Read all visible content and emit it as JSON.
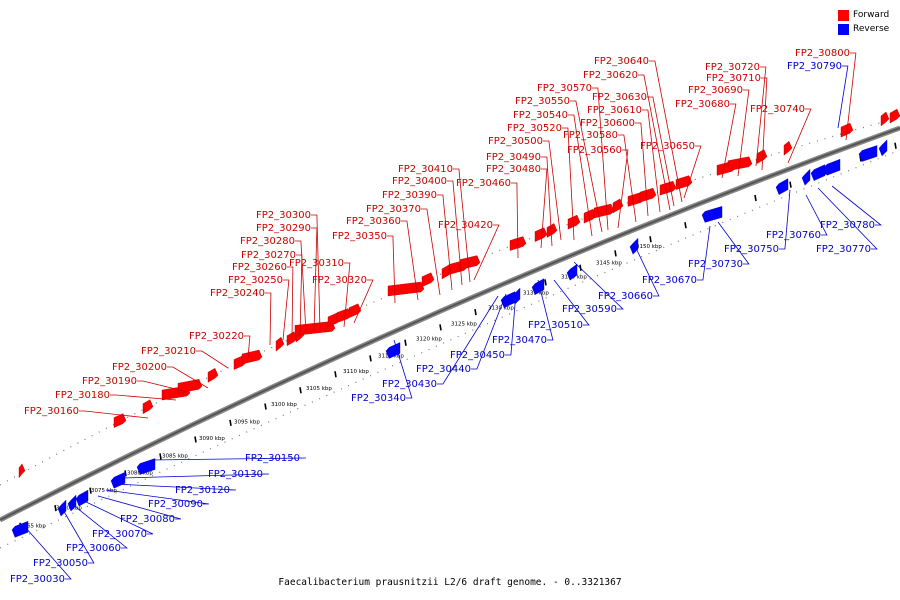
{
  "legend": {
    "forward_label": "Forward",
    "reverse_label": "Reverse",
    "forward_color": "#ff0000",
    "reverse_color": "#0000ff"
  },
  "caption": "Faecalibacterium prausnitzii L2/6 draft genome. - 0..3321367",
  "kbp_ticks": [
    "3065 kbp",
    "3070 kbp",
    "3075 kbp",
    "3080 kbp",
    "3085 kbp",
    "3090 kbp",
    "3095 kbp",
    "3100 kbp",
    "3105 kbp",
    "3110 kbp",
    "3115 kbp",
    "3120 kbp",
    "3125 kbp",
    "3130 kbp",
    "3135 kbp",
    "3140 kbp",
    "3145 kbp",
    "3150 kbp"
  ],
  "forward_labels": [
    "FP2_30160",
    "FP2_30180",
    "FP2_30190",
    "FP2_30200",
    "FP2_30210",
    "FP2_30220",
    "FP2_30240",
    "FP2_30250",
    "FP2_30260",
    "FP2_30270",
    "FP2_30280",
    "FP2_30290",
    "FP2_30300",
    "FP2_30310",
    "FP2_30320",
    "FP2_30350",
    "FP2_30360",
    "FP2_30370",
    "FP2_30390",
    "FP2_30400",
    "FP2_30410",
    "FP2_30420",
    "FP2_30460",
    "FP2_30480",
    "FP2_30490",
    "FP2_30500",
    "FP2_30520",
    "FP2_30540",
    "FP2_30550",
    "FP2_30570",
    "FP2_30560",
    "FP2_30580",
    "FP2_30600",
    "FP2_30610",
    "FP2_30620",
    "FP2_30630",
    "FP2_30640",
    "FP2_30650",
    "FP2_30680",
    "FP2_30690",
    "FP2_30710",
    "FP2_30720",
    "FP2_30740",
    "FP2_30800"
  ],
  "reverse_labels": [
    "FP2_30030",
    "FP2_30050",
    "FP2_30060",
    "FP2_30070",
    "FP2_30080",
    "FP2_30090",
    "FP2_30120",
    "FP2_30130",
    "FP2_30150",
    "FP2_30340",
    "FP2_30430",
    "FP2_30440",
    "FP2_30450",
    "FP2_30470",
    "FP2_30510",
    "FP2_30590",
    "FP2_30660",
    "FP2_30670",
    "FP2_30730",
    "FP2_30750",
    "FP2_30760",
    "FP2_30770",
    "FP2_30780",
    "FP2_30790"
  ]
}
